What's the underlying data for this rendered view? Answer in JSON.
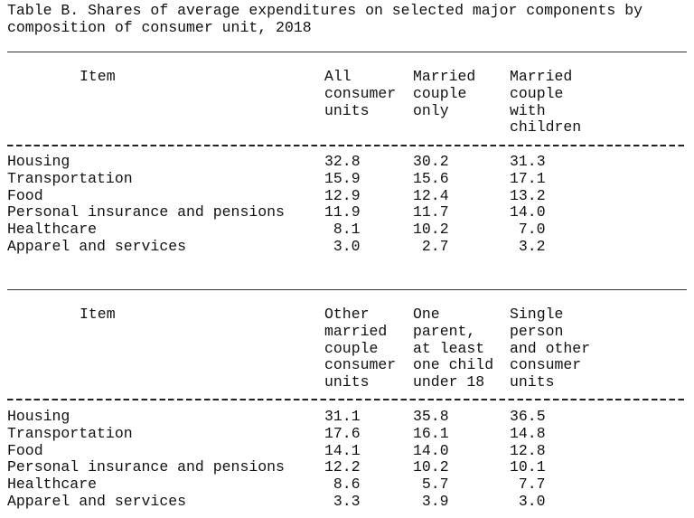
{
  "title": [
    "Table B. Shares of average expenditures on selected major components by",
    "composition of consumer unit, 2018"
  ],
  "tables": [
    {
      "item_header": "Item",
      "columns": [
        [
          "All",
          "consumer",
          "units"
        ],
        [
          "Married",
          "couple",
          "only"
        ],
        [
          "Married",
          "couple",
          "with",
          "children"
        ]
      ],
      "rows": [
        {
          "item": "Housing",
          "values": [
            "32.8",
            "30.2",
            "31.3"
          ]
        },
        {
          "item": "Transportation",
          "values": [
            "15.9",
            "15.6",
            "17.1"
          ]
        },
        {
          "item": "Food",
          "values": [
            "12.9",
            "12.4",
            "13.2"
          ]
        },
        {
          "item": "Personal insurance and pensions",
          "values": [
            "11.9",
            "11.7",
            "14.0"
          ]
        },
        {
          "item": "Healthcare",
          "values": [
            "8.1",
            "10.2",
            "7.0"
          ]
        },
        {
          "item": "Apparel and services",
          "values": [
            "3.0",
            "2.7",
            "3.2"
          ]
        }
      ]
    },
    {
      "item_header": "Item",
      "columns": [
        [
          "Other",
          "married",
          "couple",
          "consumer",
          "units"
        ],
        [
          "One",
          "parent,",
          "at least",
          "one child",
          "under 18"
        ],
        [
          "Single",
          "person",
          "and other",
          "consumer",
          "units"
        ]
      ],
      "rows": [
        {
          "item": "Housing",
          "values": [
            "31.1",
            "35.8",
            "36.5"
          ]
        },
        {
          "item": "Transportation",
          "values": [
            "17.6",
            "16.1",
            "14.8"
          ]
        },
        {
          "item": "Food",
          "values": [
            "14.1",
            "14.0",
            "12.8"
          ]
        },
        {
          "item": "Personal insurance and pensions",
          "values": [
            "12.2",
            "10.2",
            "10.1"
          ]
        },
        {
          "item": "Healthcare",
          "values": [
            "8.6",
            "5.7",
            "7.7"
          ]
        },
        {
          "item": "Apparel and services",
          "values": [
            "3.3",
            "3.9",
            "3.0"
          ]
        }
      ]
    }
  ]
}
